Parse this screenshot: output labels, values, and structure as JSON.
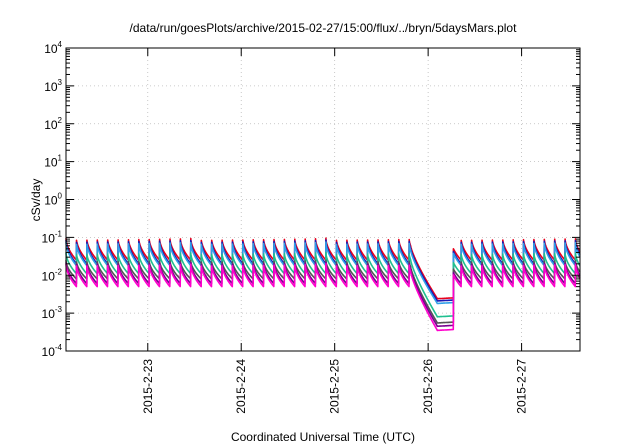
{
  "chart_data": {
    "type": "line",
    "title": "/data/run/goesPlots/archive/2015-02-27/15:00/flux/../bryn/5daysMars.plot",
    "xlabel": "Coordinated Universal Time (UTC)",
    "ylabel": "cSv/day",
    "x_range": [
      "2015-02-22T03:00",
      "2015-02-27T15:00"
    ],
    "x_ticks": [
      "2015-2-23",
      "2015-2-24",
      "2015-2-25",
      "2015-2-26",
      "2015-2-27"
    ],
    "y_scale": "log",
    "ylim": [
      0.0001,
      10000
    ],
    "y_ticks": [
      {
        "base": "10",
        "exp": "-4",
        "value": 0.0001
      },
      {
        "base": "10",
        "exp": "-3",
        "value": 0.001
      },
      {
        "base": "10",
        "exp": "-2",
        "value": 0.01
      },
      {
        "base": "10",
        "exp": "-1",
        "value": 0.1
      },
      {
        "base": "10",
        "exp": "0",
        "value": 1
      },
      {
        "base": "10",
        "exp": "1",
        "value": 10
      },
      {
        "base": "10",
        "exp": "2",
        "value": 100
      },
      {
        "base": "10",
        "exp": "3",
        "value": 1000
      },
      {
        "base": "10",
        "exp": "4",
        "value": 10000
      }
    ],
    "grid": true,
    "legend": "none",
    "sawtooth_period_hours": 2.67,
    "dip": {
      "start": "2015-02-25T19:30",
      "end": "2015-02-26T06:30"
    },
    "series": [
      {
        "color": "#e8001c",
        "peak": 0.095,
        "trough": 0.025,
        "dip_min": 0.0024
      },
      {
        "color": "#1a1ab4",
        "peak": 0.085,
        "trough": 0.02,
        "dip_min": 0.0021
      },
      {
        "color": "#30a0e8",
        "peak": 0.075,
        "trough": 0.018,
        "dip_min": 0.0018
      },
      {
        "color": "#20c090",
        "peak": 0.04,
        "trough": 0.011,
        "dip_min": 0.0008
      },
      {
        "color": "#555555",
        "peak": 0.025,
        "trough": 0.008,
        "dip_min": 0.00055
      },
      {
        "color": "#7a0090",
        "peak": 0.022,
        "trough": 0.006,
        "dip_min": 0.00045
      },
      {
        "color": "#ff00cc",
        "peak": 0.02,
        "trough": 0.005,
        "dip_min": 0.00035
      }
    ]
  }
}
